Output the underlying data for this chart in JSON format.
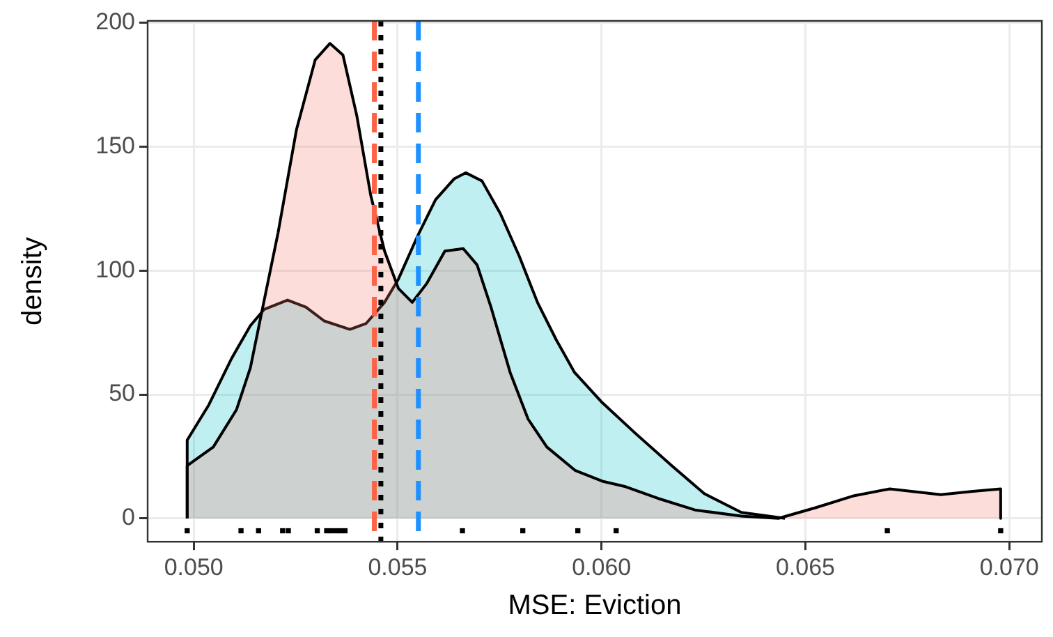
{
  "chart_data": {
    "type": "area",
    "xlabel": "MSE: Eviction",
    "ylabel": "density",
    "xlim": [
      0.04887,
      0.0708
    ],
    "xticks": [
      {
        "value": 0.05,
        "label": "0.050"
      },
      {
        "value": 0.055,
        "label": "0.055"
      },
      {
        "value": 0.06,
        "label": "0.060"
      },
      {
        "value": 0.065,
        "label": "0.065"
      },
      {
        "value": 0.07,
        "label": "0.070"
      }
    ],
    "ylim": [
      -9.4,
      200.8
    ],
    "yticks": [
      0,
      50,
      100,
      150,
      200
    ],
    "grid": true,
    "legend": false,
    "series": [
      {
        "color": "#f8766d",
        "x": [
          0.04984,
          0.04984,
          0.05048,
          0.05105,
          0.05139,
          0.05167,
          0.05207,
          0.05252,
          0.05298,
          0.05334,
          0.05366,
          0.054,
          0.05434,
          0.05468,
          0.05502,
          0.05536,
          0.05571,
          0.05616,
          0.05661,
          0.05695,
          0.05729,
          0.05776,
          0.0582,
          0.05866,
          0.05935,
          0.06002,
          0.06059,
          0.06138,
          0.06229,
          0.06343,
          0.06434,
          0.06525,
          0.06616,
          0.06707,
          0.06832,
          0.06911,
          0.06979,
          0.06979
        ],
        "values": [
          0,
          21.3,
          28.8,
          43.9,
          60.8,
          83.4,
          115.4,
          156.9,
          185.1,
          191.7,
          187,
          162.5,
          130.5,
          107.9,
          92.8,
          87.2,
          94.7,
          107.9,
          108.9,
          102.3,
          85.3,
          58.9,
          40.1,
          28.8,
          19.4,
          15,
          12.8,
          8.1,
          3.4,
          0.9,
          0,
          4.3,
          9,
          11.9,
          9.6,
          10.9,
          11.9,
          0
        ]
      },
      {
        "color": "#00bfc4",
        "x": [
          0.04984,
          0.04984,
          0.05037,
          0.05093,
          0.05139,
          0.05173,
          0.0523,
          0.05275,
          0.0532,
          0.05383,
          0.05423,
          0.05468,
          0.05502,
          0.05548,
          0.05593,
          0.05639,
          0.05667,
          0.05707,
          0.05752,
          0.05798,
          0.05843,
          0.05889,
          0.05934,
          0.06002,
          0.06082,
          0.06172,
          0.06252,
          0.06343,
          0.0645
        ],
        "values": [
          0,
          31.6,
          45.8,
          64.6,
          77.8,
          84.4,
          88.1,
          85.3,
          79.7,
          76.3,
          78.7,
          87.2,
          96.6,
          113.6,
          128.6,
          137.1,
          139.5,
          136.2,
          123,
          106,
          87.2,
          72.1,
          58.9,
          46.7,
          34.5,
          21.3,
          10,
          2.4,
          0
        ]
      },
      {
        "type": "scatter",
        "marker": "square",
        "color": "#000000",
        "x": [
          0.04984,
          0.05116,
          0.05159,
          0.05218,
          0.05232,
          0.05303,
          0.05326,
          0.05337,
          0.05349,
          0.0536,
          0.05371,
          0.05659,
          0.05807,
          0.05942,
          0.06036,
          0.06701,
          0.06979
        ],
        "values": [
          -5,
          -5,
          -5,
          -5,
          -5,
          -5,
          -5,
          -5,
          -5,
          -5,
          -5,
          -5,
          -5,
          -5,
          -5,
          -5,
          -5
        ]
      }
    ],
    "ref_lines": [
      {
        "axis": "x",
        "value": 0.05443,
        "color": "#ff6347",
        "line_style": "dashed"
      },
      {
        "axis": "x",
        "value": 0.05459,
        "color": "#000000",
        "line_style": "dotted"
      },
      {
        "axis": "x",
        "value": 0.05551,
        "color": "#1e90ff",
        "line_style": "dashed"
      }
    ]
  }
}
